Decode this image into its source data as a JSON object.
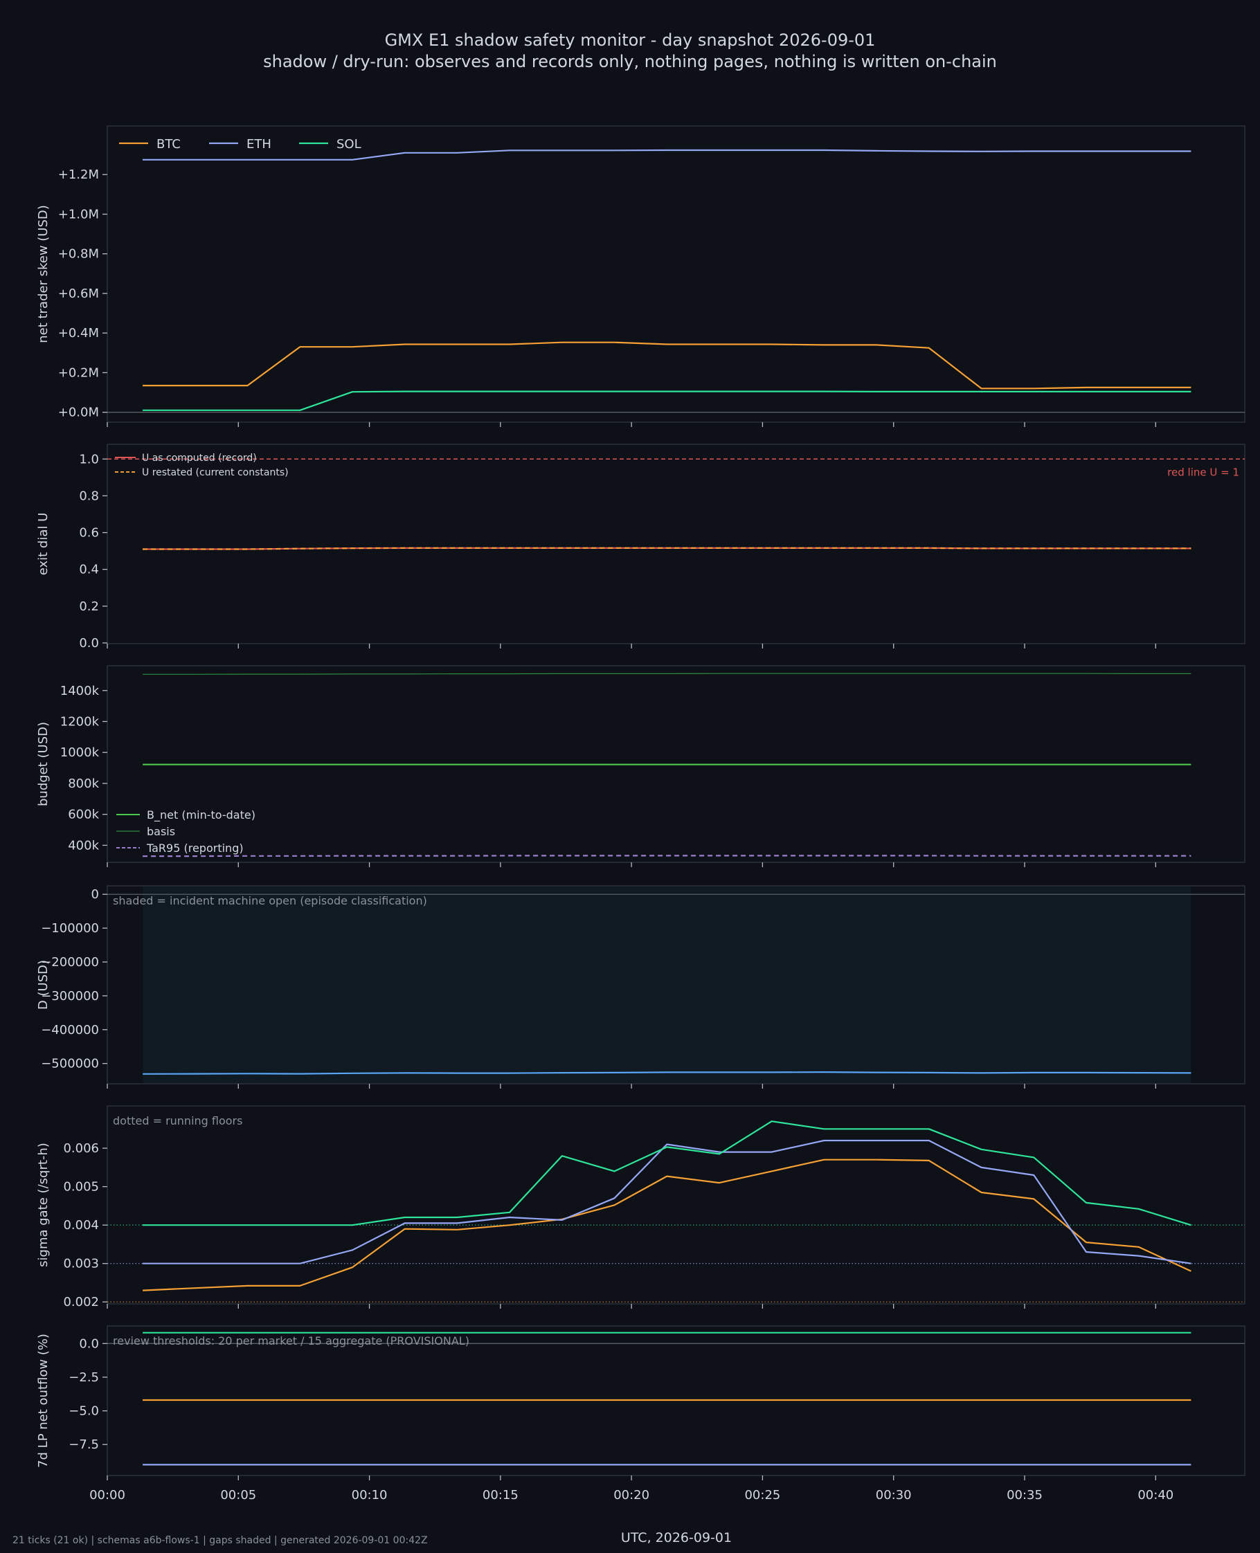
{
  "title_line1": "GMX E1 shadow safety monitor - day snapshot 2026-09-01",
  "title_line2": "shadow / dry-run: observes and records only, nothing pages, nothing is written on-chain",
  "footer": "21 ticks (21 ok) | schemas a6b-flows-1 | gaps shaded | generated 2026-09-01 00:42Z",
  "colors": {
    "background": "#0d1017",
    "panel": "#0e1118",
    "frame": "#2c313b",
    "text": "#c9ced6",
    "muted": "#8b919b",
    "btc": "#f7a035",
    "eth": "#96a8f5",
    "sol": "#2ee59a",
    "green": "#4cc94c",
    "basis": "#2f8a3f",
    "tar": "#9a7fd0",
    "red": "#e05555",
    "blue": "#58a6f5",
    "shade": "#0f1a23"
  },
  "chart_data": {
    "type": "line",
    "x_label": "UTC, 2026-09-01",
    "x_ticks": [
      "00:00",
      "00:05",
      "00:10",
      "00:15",
      "00:20",
      "00:25",
      "00:30",
      "00:35",
      "00:40"
    ],
    "x_range": [
      0,
      43.4
    ],
    "x": [
      1.35,
      3.35,
      5.35,
      7.35,
      9.35,
      11.35,
      13.35,
      15.35,
      17.35,
      19.35,
      21.35,
      23.35,
      25.35,
      27.35,
      29.35,
      31.35,
      33.35,
      35.35,
      37.35,
      39.35,
      41.35
    ],
    "panels": [
      {
        "id": "skew",
        "ylabel": "net trader skew (USD)",
        "ylim": [
          -0.05,
          1.4
        ],
        "yticks": [
          0,
          0.2,
          0.4,
          0.6,
          0.8,
          1.0,
          1.2
        ],
        "ytick_labels": [
          "+0.0M",
          "+0.2M",
          "+0.4M",
          "+0.6M",
          "+0.8M",
          "+1.0M",
          "+1.2M"
        ],
        "zero_line": true,
        "legend_position": "top-left horizontal",
        "series": [
          {
            "name": "BTC",
            "color": "btc",
            "values": [
              0.135,
              0.135,
              0.135,
              0.33,
              0.33,
              0.343,
              0.343,
              0.343,
              0.353,
              0.353,
              0.343,
              0.343,
              0.343,
              0.34,
              0.34,
              0.325,
              0.12,
              0.12,
              0.125,
              0.125,
              0.125
            ]
          },
          {
            "name": "ETH",
            "color": "eth",
            "values": [
              1.275,
              1.275,
              1.275,
              1.275,
              1.275,
              1.31,
              1.31,
              1.322,
              1.322,
              1.322,
              1.323,
              1.323,
              1.323,
              1.323,
              1.32,
              1.318,
              1.317,
              1.318,
              1.318,
              1.318,
              1.318
            ]
          },
          {
            "name": "SOL",
            "color": "sol",
            "values": [
              0.01,
              0.01,
              0.01,
              0.01,
              0.103,
              0.105,
              0.105,
              0.105,
              0.105,
              0.105,
              0.105,
              0.105,
              0.105,
              0.105,
              0.104,
              0.104,
              0.104,
              0.104,
              0.104,
              0.104,
              0.104
            ]
          }
        ]
      },
      {
        "id": "exit-dial",
        "ylabel": "exit dial U",
        "ylim": [
          0,
          1.08
        ],
        "yticks": [
          0,
          0.2,
          0.4,
          0.6,
          0.8,
          1.0
        ],
        "ytick_labels": [
          "0.0",
          "0.2",
          "0.4",
          "0.6",
          "0.8",
          "1.0"
        ],
        "red_line": {
          "value": 1.0,
          "label": "red line U = 1"
        },
        "legend_position": "top-left",
        "series": [
          {
            "name": "U as computed (record)",
            "color": "red",
            "values": [
              0.51,
              0.51,
              0.51,
              0.513,
              0.515,
              0.516,
              0.516,
              0.516,
              0.516,
              0.516,
              0.516,
              0.516,
              0.516,
              0.516,
              0.516,
              0.516,
              0.514,
              0.514,
              0.514,
              0.514,
              0.514
            ]
          },
          {
            "name": "U restated (current constants)",
            "color": "btc",
            "dashed": true,
            "values": [
              0.51,
              0.51,
              0.51,
              0.513,
              0.515,
              0.516,
              0.516,
              0.516,
              0.516,
              0.516,
              0.516,
              0.516,
              0.516,
              0.516,
              0.516,
              0.516,
              0.514,
              0.514,
              0.514,
              0.514,
              0.514
            ]
          }
        ]
      },
      {
        "id": "budget",
        "ylabel": "budget (USD)",
        "ylim": [
          290,
          1560
        ],
        "yticks": [
          400,
          600,
          800,
          1000,
          1200,
          1400
        ],
        "ytick_labels": [
          "400k",
          "600k",
          "800k",
          "1000k",
          "1200k",
          "1400k"
        ],
        "legend_position": "bottom-left",
        "series": [
          {
            "name": "B_net (min-to-date)",
            "color": "green",
            "values": [
              922,
              922,
              922,
              922,
              922,
              922,
              922,
              922,
              922,
              922,
              922,
              922,
              922,
              922,
              922,
              922,
              922,
              922,
              922,
              922,
              922
            ]
          },
          {
            "name": "basis",
            "color": "basis",
            "values": [
              1505,
              1505,
              1506,
              1506,
              1507,
              1507,
              1508,
              1508,
              1509,
              1509,
              1509,
              1510,
              1510,
              1510,
              1510,
              1510,
              1510,
              1510,
              1510,
              1509,
              1509
            ]
          },
          {
            "name": "TaR95 (reporting)",
            "color": "tar",
            "dashed": true,
            "values": [
              330,
              330,
              331,
              331,
              332,
              332,
              332,
              333,
              333,
              333,
              333,
              333,
              333,
              333,
              333,
              333,
              332,
              332,
              332,
              332,
              332
            ]
          }
        ]
      },
      {
        "id": "drawdown",
        "ylabel": "D (USD)",
        "ylim": [
          -560000,
          25000
        ],
        "yticks": [
          0,
          -100000,
          -200000,
          -300000,
          -400000,
          -500000
        ],
        "ytick_labels": [
          "0",
          "−100000",
          "−200000",
          "−300000",
          "−400000",
          "−500000"
        ],
        "zero_line": true,
        "note": "shaded = incident machine open (episode classification)",
        "shade_range": [
          1.35,
          41.35
        ],
        "series": [
          {
            "name": "D",
            "color": "blue",
            "values": [
              -531000,
              -530500,
              -530000,
              -530500,
              -529000,
              -528000,
              -528500,
              -528500,
              -527500,
              -527000,
              -526000,
              -526000,
              -526000,
              -525500,
              -526500,
              -527000,
              -528000,
              -527000,
              -527000,
              -527500,
              -528000
            ]
          }
        ]
      },
      {
        "id": "sigma",
        "ylabel": "sigma gate (/sqrt-h)",
        "ylim": [
          0.00195,
          0.0071
        ],
        "yticks": [
          0.002,
          0.003,
          0.004,
          0.005,
          0.006
        ],
        "ytick_labels": [
          "0.002",
          "0.003",
          "0.004",
          "0.005",
          "0.006"
        ],
        "note": "dotted = running floors",
        "floors": [
          {
            "color": "btc",
            "value": 0.002
          },
          {
            "color": "eth",
            "value": 0.003
          },
          {
            "color": "sol",
            "value": 0.004
          }
        ],
        "series": [
          {
            "name": "BTC",
            "color": "btc",
            "values": [
              0.0023,
              0.00236,
              0.00242,
              0.00242,
              0.0029,
              0.0039,
              0.00388,
              0.004,
              0.00415,
              0.00452,
              0.00527,
              0.0051,
              0.0054,
              0.0057,
              0.0057,
              0.00568,
              0.00485,
              0.00468,
              0.00355,
              0.00343,
              0.0028
            ]
          },
          {
            "name": "ETH",
            "color": "eth",
            "values": [
              0.003,
              0.003,
              0.003,
              0.003,
              0.00335,
              0.00405,
              0.00405,
              0.0042,
              0.00413,
              0.0047,
              0.0061,
              0.0059,
              0.0059,
              0.0062,
              0.0062,
              0.0062,
              0.0055,
              0.0053,
              0.0033,
              0.0032,
              0.003
            ]
          },
          {
            "name": "SOL",
            "color": "sol",
            "values": [
              0.004,
              0.004,
              0.004,
              0.004,
              0.004,
              0.0042,
              0.0042,
              0.00433,
              0.0058,
              0.0054,
              0.00603,
              0.00585,
              0.0067,
              0.0065,
              0.0065,
              0.0065,
              0.00597,
              0.00576,
              0.00458,
              0.00442,
              0.004
            ]
          }
        ]
      },
      {
        "id": "lp-outflow",
        "ylabel": "7d LP net outflow (%)",
        "ylim": [
          -9.8,
          1.3
        ],
        "yticks": [
          0,
          -2.5,
          -5,
          -7.5
        ],
        "ytick_labels": [
          "0.0",
          "−2.5",
          "−5.0",
          "−7.5"
        ],
        "zero_line": true,
        "note": "review thresholds: 20 per market / 15 aggregate (PROVISIONAL)",
        "series": [
          {
            "name": "SOL",
            "color": "sol",
            "values": [
              0.8,
              0.8,
              0.8,
              0.8,
              0.8,
              0.8,
              0.8,
              0.8,
              0.8,
              0.8,
              0.8,
              0.8,
              0.8,
              0.8,
              0.8,
              0.8,
              0.8,
              0.8,
              0.8,
              0.8,
              0.8
            ]
          },
          {
            "name": "BTC",
            "color": "btc",
            "values": [
              -4.2,
              -4.2,
              -4.2,
              -4.2,
              -4.2,
              -4.2,
              -4.2,
              -4.2,
              -4.2,
              -4.2,
              -4.2,
              -4.2,
              -4.2,
              -4.2,
              -4.2,
              -4.2,
              -4.2,
              -4.2,
              -4.2,
              -4.2,
              -4.2
            ]
          },
          {
            "name": "ETH",
            "color": "eth",
            "values": [
              -9.0,
              -9.0,
              -9.0,
              -9.0,
              -9.0,
              -9.0,
              -9.0,
              -9.0,
              -9.0,
              -9.0,
              -9.0,
              -9.0,
              -9.0,
              -9.0,
              -9.0,
              -9.0,
              -9.0,
              -9.0,
              -9.0,
              -9.0,
              -9.0
            ]
          }
        ]
      }
    ]
  }
}
